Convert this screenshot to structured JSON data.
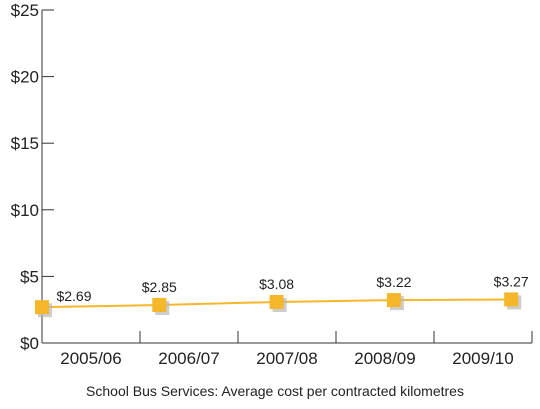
{
  "chart_data": {
    "type": "line",
    "title": "",
    "xlabel": "School Bus Services: Average cost per contracted kilometres",
    "ylabel": "",
    "categories": [
      "2005/06",
      "2006/07",
      "2007/08",
      "2008/09",
      "2009/10"
    ],
    "series": [
      {
        "values": [
          2.69,
          2.85,
          3.08,
          3.22,
          3.27
        ]
      }
    ],
    "data_labels": [
      "$2.69",
      "$2.85",
      "$3.08",
      "$3.22",
      "$3.27"
    ],
    "ylim": [
      0,
      25
    ],
    "yticks": [
      0,
      5,
      10,
      15,
      20,
      25
    ],
    "ytick_labels": [
      "$0",
      "$5",
      "$10",
      "$15",
      "$20",
      "$25"
    ],
    "grid": false,
    "line_color": "#f5b72a",
    "marker_color": "#f5b72a",
    "marker_shadow_color": "#b8b8b8"
  }
}
